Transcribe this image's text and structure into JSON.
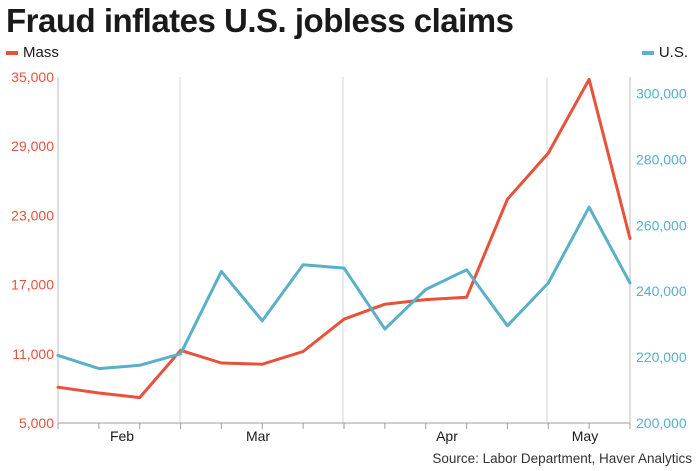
{
  "chart_data": {
    "type": "line",
    "title": "Fraud inflates U.S. jobless claims",
    "source": "Source: Labor Department, Haver Analytics",
    "x_labels": [
      "Feb",
      "Mar",
      "Apr",
      "May"
    ],
    "left_axis": {
      "range": [
        5000,
        35000
      ],
      "ticks": [
        5000,
        11000,
        17000,
        23000,
        29000,
        35000
      ],
      "tick_labels": [
        "5,000",
        "11,000",
        "17,000",
        "23,000",
        "29,000",
        "35,000"
      ],
      "color": "#e8513a"
    },
    "right_axis": {
      "range": [
        200000,
        305000
      ],
      "ticks": [
        200000,
        220000,
        240000,
        260000,
        280000,
        300000
      ],
      "tick_labels": [
        "200,000",
        "220,000",
        "240,000",
        "260,000",
        "280,000",
        "300,000"
      ],
      "color": "#5aafc9"
    },
    "series": [
      {
        "name": "Mass",
        "axis": "left",
        "color": "#e8513a",
        "values": [
          8100,
          7600,
          7200,
          11300,
          10200,
          10100,
          11200,
          14000,
          15300,
          15700,
          15900,
          24400,
          28400,
          34800,
          21000
        ]
      },
      {
        "name": "U.S.",
        "axis": "right",
        "color": "#5aafc9",
        "values": [
          220500,
          216500,
          217500,
          221000,
          246000,
          231000,
          248000,
          247000,
          228500,
          240500,
          246500,
          229500,
          242500,
          265500,
          242500
        ]
      }
    ],
    "grid": "vertical",
    "legend": "top-left and top-right"
  }
}
